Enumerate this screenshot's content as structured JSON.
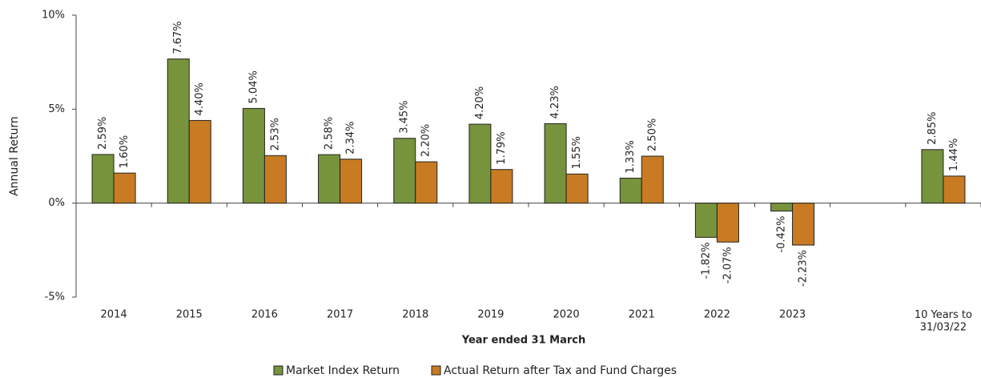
{
  "chart_data": {
    "type": "bar",
    "y_label": "Annual Return",
    "x_label": "Year ended 31 March",
    "categories": [
      "2014",
      "2015",
      "2016",
      "2017",
      "2018",
      "2019",
      "2020",
      "2021",
      "2022",
      "2023",
      null,
      "10 Years to\n31/03/22"
    ],
    "series": [
      {
        "name": "Market Index Return",
        "color": "#77933c",
        "values": [
          2.59,
          7.67,
          5.04,
          2.58,
          3.45,
          4.2,
          4.23,
          1.33,
          -1.82,
          -0.42,
          null,
          2.85
        ],
        "value_labels": [
          "2.59%",
          "7.67%",
          "5.04%",
          "2.58%",
          "3.45%",
          "4.20%",
          "4.23%",
          "1.33%",
          "-1.82%",
          "-0.42%",
          null,
          "2.85%"
        ]
      },
      {
        "name": "Actual Return after Tax and Fund Charges",
        "color": "#c87b23",
        "values": [
          1.6,
          4.4,
          2.53,
          2.34,
          2.2,
          1.79,
          1.55,
          2.5,
          -2.07,
          -2.23,
          null,
          1.44
        ],
        "value_labels": [
          "1.60%",
          "4.40%",
          "2.53%",
          "2.34%",
          "2.20%",
          "1.79%",
          "1.55%",
          "2.50%",
          "-2.07%",
          "-2.23%",
          null,
          "1.44%"
        ]
      }
    ],
    "ylim": [
      -5,
      10
    ],
    "yticks": [
      {
        "value": -5,
        "label": "-5%"
      },
      {
        "value": 0,
        "label": "0%"
      },
      {
        "value": 5,
        "label": "5%"
      },
      {
        "value": 10,
        "label": "10%"
      }
    ],
    "legend": "bottom"
  }
}
